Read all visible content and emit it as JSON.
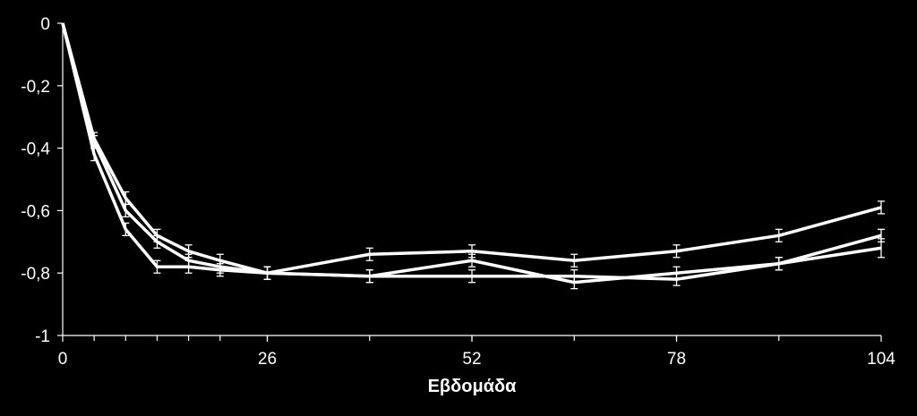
{
  "chart_data": {
    "type": "line",
    "xlabel": "Εβδομάδα",
    "ylabel": "",
    "title": "",
    "xlim": [
      0,
      104
    ],
    "ylim": [
      -1,
      0
    ],
    "x_ticks": [
      0,
      26,
      52,
      78,
      104
    ],
    "x_tick_labels": [
      "0",
      "26",
      "52",
      "78",
      "104"
    ],
    "y_ticks": [
      0,
      -0.2,
      -0.4,
      -0.6,
      -0.8,
      -1
    ],
    "y_tick_labels": [
      "0",
      "-0,2",
      "-0,4",
      "-0,6",
      "-0,8",
      "-1"
    ],
    "minor_x_ticks": [
      4,
      8,
      12,
      16,
      20,
      26,
      39,
      52,
      65,
      78,
      91
    ],
    "grid": false,
    "legend": "none",
    "line_color": "#ffffff",
    "background": "#000000",
    "series": [
      {
        "x": [
          0,
          4,
          8,
          12,
          16,
          20,
          26,
          39,
          52,
          65,
          78,
          91,
          104
        ],
        "values": [
          0,
          -0.37,
          -0.56,
          -0.68,
          -0.73,
          -0.76,
          -0.8,
          -0.74,
          -0.73,
          -0.76,
          -0.73,
          -0.68,
          -0.59
        ],
        "errors": [
          0,
          0.02,
          0.02,
          0.02,
          0.02,
          0.02,
          0.02,
          0.02,
          0.02,
          0.02,
          0.02,
          0.02,
          0.02
        ]
      },
      {
        "x": [
          0,
          4,
          8,
          12,
          16,
          20,
          26,
          39,
          52,
          65,
          78,
          91,
          104
        ],
        "values": [
          0,
          -0.38,
          -0.6,
          -0.7,
          -0.76,
          -0.78,
          -0.8,
          -0.81,
          -0.76,
          -0.83,
          -0.8,
          -0.77,
          -0.68
        ],
        "errors": [
          0,
          0.02,
          0.02,
          0.02,
          0.02,
          0.02,
          0.02,
          0.02,
          0.02,
          0.02,
          0.02,
          0.02,
          0.02
        ]
      },
      {
        "x": [
          0,
          4,
          8,
          12,
          16,
          20,
          26,
          39,
          52,
          65,
          78,
          91,
          104
        ],
        "values": [
          0,
          -0.42,
          -0.66,
          -0.78,
          -0.78,
          -0.79,
          -0.8,
          -0.81,
          -0.81,
          -0.81,
          -0.82,
          -0.77,
          -0.72
        ],
        "errors": [
          0,
          0.02,
          0.02,
          0.02,
          0.02,
          0.02,
          0.02,
          0.02,
          0.02,
          0.02,
          0.02,
          0.02,
          0.03
        ]
      }
    ]
  }
}
